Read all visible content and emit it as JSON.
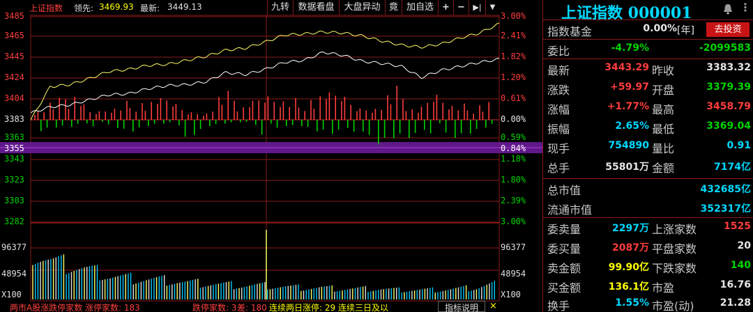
{
  "colors": {
    "up": "#ff3c3c",
    "down": "#00d400",
    "neutral": "#e6e6e6",
    "cyan": "#00d8ff",
    "yellow": "#ffff00",
    "purple": "#6a1b9a",
    "grid": "#8b1a1a"
  },
  "header": {
    "index_name": "上证指数",
    "leader_label": "领先:",
    "leader_value": "3469.93",
    "latest_label": "最新:",
    "latest_value": "3449.13",
    "buttons": [
      "九转",
      "数据看盘",
      "大盘异动",
      "竟",
      "加自选"
    ],
    "icon_plus": "+",
    "icon_minus": "−",
    "icon_next": "▶|",
    "icon_more": "▼"
  },
  "price_axis_left": [
    "3485",
    "3465",
    "3445",
    "3424",
    "3404",
    "3383",
    "3363",
    "3355",
    "3343",
    "3323",
    "3303",
    "3282"
  ],
  "price_axis_right": [
    "3.00%",
    "2.41%",
    "1.82%",
    "1.20%",
    "0.61%",
    "0.00%",
    "0.59%",
    "0.84%",
    "1.18%",
    "1.80%",
    "2.39%",
    "3.00%"
  ],
  "volume_axis_left": [
    "96377",
    "48954",
    "X100"
  ],
  "volume_axis_right": [
    "96377",
    "48954",
    "X100"
  ],
  "bottom_bar": {
    "text1": "两市A股涨跌停家数 涨停家数: 183",
    "text2": "跌停家数: 3 ",
    "text3": "差: 180",
    "text4": "连续两日涨停: 29 连续三日及以",
    "button": "指标说明",
    "close": "×"
  },
  "chart_data": {
    "type": "line",
    "ylim": [
      3282,
      3485
    ],
    "baseline": 3383.32,
    "series": [],
    "x": [
      0,
      10,
      20,
      30,
      40,
      50,
      60,
      70,
      80,
      90,
      100,
      110,
      120,
      130,
      140,
      150,
      160,
      170,
      180,
      190,
      200,
      210,
      220,
      230,
      240
    ],
    "leader_line": [
      3383,
      3416,
      3418,
      3424,
      3431,
      3433,
      3437,
      3438,
      3442,
      3446,
      3452,
      3454,
      3460,
      3467,
      3468,
      3470,
      3469,
      3466,
      3461,
      3457,
      3455,
      3458,
      3464,
      3469,
      3478
    ],
    "price_line": [
      3390,
      3396,
      3398,
      3403,
      3408,
      3409,
      3414,
      3417,
      3418,
      3421,
      3430,
      3428,
      3433,
      3440,
      3442,
      3450,
      3447,
      3441,
      3439,
      3436,
      3425,
      3432,
      3436,
      3440,
      3443
    ],
    "strength_up": [
      18,
      30,
      42,
      12,
      22,
      30,
      28,
      36,
      15,
      14,
      48,
      20,
      44,
      40,
      30,
      38,
      46,
      22,
      26,
      52,
      10,
      48,
      28,
      22,
      30
    ],
    "strength_down": [
      22,
      16,
      18,
      10,
      8,
      24,
      14,
      10,
      30,
      12,
      8,
      6,
      24,
      10,
      12,
      30,
      48,
      10,
      44,
      38,
      52,
      12,
      30,
      26,
      14
    ],
    "volume": [
      90,
      72,
      64,
      55,
      44,
      40,
      38,
      36,
      32,
      30,
      28,
      26,
      26,
      24,
      22,
      22,
      20,
      20,
      20,
      18,
      18,
      18,
      20,
      22,
      30
    ]
  },
  "panel": {
    "title": "上证指数 000001",
    "fund_label": "指数基金",
    "fund_value": "0.00%",
    "fund_unit": "[年]",
    "invest_button": "去投资",
    "rows": [
      {
        "l1": "委比",
        "v1": "-4.79%",
        "c1": "down",
        "l2": "",
        "v2": "-2099583",
        "c2": "down"
      },
      {
        "l1": "最新",
        "v1": "3443.29",
        "c1": "up",
        "l2": "昨收",
        "v2": "3383.32",
        "c2": "neutral"
      },
      {
        "l1": "涨跌",
        "v1": "+59.97",
        "c1": "up",
        "l2": "开盘",
        "v2": "3379.39",
        "c2": "down"
      },
      {
        "l1": "涨幅",
        "v1": "+1.77%",
        "c1": "up",
        "l2": "最高",
        "v2": "3458.79",
        "c2": "up"
      },
      {
        "l1": "振幅",
        "v1": "2.65%",
        "c1": "cyan",
        "l2": "最低",
        "v2": "3369.04",
        "c2": "down"
      },
      {
        "l1": "现手",
        "v1": "754890",
        "c1": "cyan",
        "l2": "量比",
        "v2": "0.91",
        "c2": "cyan"
      },
      {
        "l1": "总手",
        "v1": "55801万",
        "c1": "neutral",
        "l2": "金额",
        "v2": "7174亿",
        "c2": "cyan"
      },
      {
        "l1": "总市值",
        "v1": "",
        "c1": "neutral",
        "l2": "",
        "v2": "432685亿",
        "c2": "cyan"
      },
      {
        "l1": "流通市值",
        "v1": "",
        "c1": "neutral",
        "l2": "",
        "v2": "352317亿",
        "c2": "cyan"
      },
      {
        "l1": "委卖量",
        "v1": "2297万",
        "c1": "cyan",
        "l2": "上涨家数",
        "v2": "1525",
        "c2": "up"
      },
      {
        "l1": "委买量",
        "v1": "2087万",
        "c1": "up",
        "l2": "平盘家数",
        "v2": "20",
        "c2": "neutral"
      },
      {
        "l1": "卖金额",
        "v1": "99.90亿",
        "c1": "yellow",
        "l2": "下跌家数",
        "v2": "140",
        "c2": "down"
      },
      {
        "l1": "买金额",
        "v1": "136.1亿",
        "c1": "yellow",
        "l2": "市盈",
        "v2": "16.76",
        "c2": "neutral"
      },
      {
        "l1": "换手",
        "v1": "1.55%",
        "c1": "cyan",
        "l2": "市盈(动)",
        "v2": "21.28",
        "c2": "neutral"
      }
    ]
  }
}
